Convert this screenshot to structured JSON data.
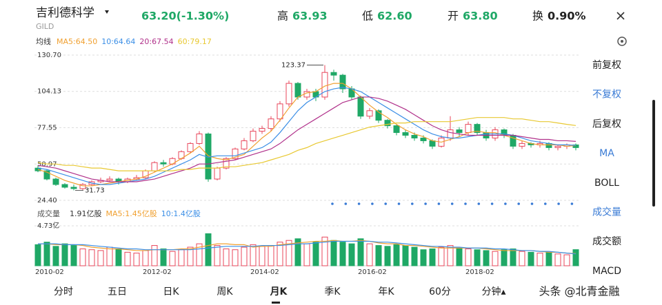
{
  "header": {
    "name": "吉利德科学",
    "ticker": "GILD",
    "price": "63.20(-1.30%)",
    "high_label": "高",
    "high": "63.93",
    "low_label": "低",
    "low": "62.60",
    "open_label": "开",
    "open": "63.80",
    "turnover_label": "换",
    "turnover": "0.90%"
  },
  "ma_title": "均线",
  "chart_data": {
    "type": "candlestick",
    "categories": [
      "2010-02",
      null,
      null,
      null,
      null,
      null,
      null,
      null,
      null,
      null,
      null,
      null,
      "2012-02",
      null,
      null,
      null,
      null,
      null,
      null,
      null,
      null,
      null,
      null,
      null,
      "2014-02",
      null,
      null,
      null,
      null,
      null,
      null,
      null,
      null,
      null,
      null,
      null,
      "2016-02",
      null,
      null,
      null,
      null,
      null,
      null,
      null,
      null,
      null,
      null,
      null,
      "2018-02",
      null,
      null,
      null,
      null,
      null,
      null,
      null,
      null,
      null,
      null,
      null,
      null
    ],
    "open": [
      48,
      46,
      40,
      36,
      34,
      33,
      36,
      38,
      39,
      40,
      38,
      40,
      41,
      46,
      52,
      51,
      55,
      60,
      66,
      73,
      40,
      48,
      55,
      62,
      68,
      75,
      77,
      84,
      95,
      110,
      100,
      104,
      100,
      118,
      116,
      106,
      100,
      86,
      90,
      83,
      79,
      74,
      72,
      70,
      68,
      64,
      70,
      76,
      74,
      80,
      74,
      70,
      76,
      72,
      64,
      66,
      65,
      66,
      63,
      64,
      65
    ],
    "high": [
      50,
      47,
      41,
      37,
      36,
      37,
      39,
      41,
      42,
      41,
      41,
      43,
      47,
      53,
      54,
      56,
      61,
      67,
      75,
      74,
      49,
      56,
      63,
      70,
      77,
      79,
      86,
      97,
      112,
      111,
      106,
      106,
      123.37,
      120,
      117,
      108,
      101,
      92,
      91,
      84,
      80,
      76,
      74,
      72,
      69,
      72,
      86,
      78,
      82,
      81,
      76,
      78,
      77,
      73,
      68,
      67,
      68,
      67,
      65,
      66,
      66
    ],
    "low": [
      45,
      39,
      35,
      33,
      31.73,
      32,
      35,
      37,
      38,
      36,
      37,
      39,
      40,
      45,
      49,
      50,
      54,
      59,
      65,
      38,
      39,
      47,
      54,
      61,
      67,
      73,
      75,
      82,
      93,
      98,
      98,
      97,
      98,
      112,
      103,
      98,
      84,
      84,
      81,
      77,
      72,
      70,
      68,
      66,
      62,
      63,
      68,
      71,
      72,
      72,
      68,
      68,
      70,
      62,
      62,
      63,
      63,
      61,
      61,
      62,
      61
    ],
    "close": [
      46,
      40,
      36,
      34,
      33,
      36,
      38,
      39,
      40,
      38,
      40,
      41,
      46,
      52,
      51,
      55,
      60,
      66,
      73,
      40,
      48,
      55,
      62,
      68,
      75,
      77,
      84,
      95,
      110,
      100,
      104,
      100,
      118,
      116,
      106,
      100,
      86,
      90,
      83,
      79,
      74,
      72,
      70,
      68,
      64,
      70,
      76,
      74,
      80,
      74,
      70,
      76,
      72,
      64,
      66,
      65,
      66,
      63,
      64,
      65,
      63
    ],
    "up_color": "#e8455a",
    "down_color": "#1fa866",
    "ylim": [
      24.4,
      130.7
    ],
    "yticks": [
      {
        "value": 130.7,
        "label": "130.70"
      },
      104.13,
      77.55,
      50.97,
      {
        "value": 24.4,
        "label": "24.40"
      }
    ],
    "grid": true,
    "ma_lines": [
      {
        "name": "MA5:64.50",
        "color": "#f0a030",
        "values": [
          47,
          45,
          42,
          39,
          37,
          35,
          35,
          36,
          37,
          38,
          39,
          40,
          42,
          45,
          48,
          51,
          55,
          59,
          64,
          57,
          55,
          54,
          56,
          58,
          64,
          70,
          75,
          83,
          92,
          100,
          103,
          104,
          108,
          110,
          110,
          106,
          100,
          94,
          89,
          85,
          80,
          76,
          73,
          71,
          68,
          67,
          69,
          71,
          74,
          75,
          74,
          74,
          72,
          70,
          68,
          66,
          65,
          65,
          65,
          64,
          64.5
        ]
      },
      {
        "name": "10:64.64",
        "color": "#3a8ee6",
        "values": [
          48,
          47,
          45,
          43,
          41,
          39,
          37,
          36,
          36,
          37,
          38,
          39,
          40,
          42,
          45,
          48,
          51,
          54,
          58,
          56,
          57,
          57,
          57,
          59,
          61,
          63,
          67,
          74,
          82,
          90,
          96,
          100,
          104,
          106,
          107,
          106,
          104,
          100,
          96,
          92,
          88,
          84,
          80,
          76,
          73,
          71,
          70,
          70,
          71,
          72,
          73,
          73,
          73,
          72,
          70,
          68,
          67,
          66,
          65,
          65,
          64.64
        ]
      },
      {
        "name": "20:67.54",
        "color": "#b0308a",
        "values": [
          50,
          49,
          48,
          46,
          44,
          42,
          40,
          39,
          38,
          38,
          38,
          38,
          39,
          40,
          42,
          44,
          46,
          48,
          51,
          51,
          52,
          53,
          54,
          56,
          58,
          60,
          62,
          66,
          71,
          76,
          80,
          84,
          88,
          92,
          96,
          98,
          100,
          100,
          99,
          97,
          94,
          91,
          87,
          83,
          79,
          76,
          74,
          73,
          72,
          72,
          72,
          72,
          72,
          72,
          71,
          70,
          69,
          69,
          68,
          68,
          67.54
        ]
      },
      {
        "name": "60:79.17",
        "color": "#e8c830",
        "values": [
          52,
          51,
          51,
          50,
          50,
          49,
          48,
          48,
          47,
          46,
          46,
          46,
          46,
          46,
          46,
          46,
          47,
          47,
          48,
          48,
          48,
          49,
          49,
          50,
          51,
          52,
          54,
          56,
          58,
          61,
          63,
          66,
          68,
          70,
          72,
          74,
          76,
          78,
          79,
          80,
          81,
          81,
          82,
          82,
          82,
          82,
          82,
          83,
          84,
          85,
          85,
          85,
          85,
          84,
          84,
          83,
          82,
          82,
          81,
          80,
          79.17
        ]
      }
    ],
    "volume": {
      "title": "成交量",
      "current": "1.91亿股",
      "ylim": [
        0,
        4.73
      ],
      "yticks": [
        {
          "value": 4.73,
          "label": "4.73亿"
        }
      ],
      "values": [
        2.5,
        2.8,
        2.3,
        2.6,
        2.4,
        2.0,
        1.9,
        1.8,
        2.2,
        2.0,
        1.6,
        1.5,
        1.8,
        2.4,
        2.0,
        1.7,
        1.9,
        2.2,
        2.6,
        3.8,
        2.4,
        2.0,
        1.9,
        2.2,
        2.5,
        2.3,
        2.4,
        2.8,
        3.0,
        3.2,
        2.6,
        2.8,
        3.4,
        3.0,
        2.8,
        2.6,
        3.2,
        2.6,
        2.4,
        2.3,
        2.5,
        2.4,
        2.2,
        1.9,
        2.0,
        2.2,
        2.4,
        2.1,
        2.0,
        1.9,
        1.8,
        1.7,
        1.9,
        2.0,
        1.7,
        1.6,
        1.5,
        1.6,
        1.4,
        1.3,
        1.91
      ],
      "lines": [
        {
          "name": "MA5:1.45亿股",
          "color": "#f0a030",
          "values": [
            2.6,
            2.6,
            2.5,
            2.5,
            2.5,
            2.4,
            2.2,
            2.1,
            2.0,
            2.0,
            1.9,
            1.8,
            1.8,
            1.9,
            1.9,
            1.9,
            2.0,
            2.0,
            2.2,
            2.4,
            2.6,
            2.6,
            2.5,
            2.5,
            2.2,
            2.3,
            2.3,
            2.5,
            2.6,
            2.7,
            2.8,
            2.9,
            2.9,
            3.0,
            2.9,
            2.9,
            3.0,
            2.9,
            2.7,
            2.6,
            2.6,
            2.4,
            2.4,
            2.3,
            2.2,
            2.1,
            2.1,
            2.1,
            2.1,
            2.1,
            2.0,
            1.9,
            1.8,
            1.8,
            1.8,
            1.8,
            1.7,
            1.6,
            1.6,
            1.5,
            1.45
          ]
        },
        {
          "name": "10:1.4亿股",
          "color": "#3a8ee6",
          "values": [
            2.6,
            2.6,
            2.6,
            2.5,
            2.5,
            2.5,
            2.4,
            2.3,
            2.2,
            2.1,
            2.0,
            2.0,
            1.9,
            1.9,
            1.9,
            1.9,
            1.9,
            1.9,
            2.0,
            2.1,
            2.2,
            2.3,
            2.3,
            2.3,
            2.3,
            2.4,
            2.4,
            2.4,
            2.5,
            2.6,
            2.6,
            2.7,
            2.8,
            2.9,
            2.9,
            2.9,
            2.9,
            2.9,
            2.8,
            2.8,
            2.7,
            2.6,
            2.5,
            2.4,
            2.3,
            2.3,
            2.2,
            2.2,
            2.1,
            2.1,
            2.1,
            2.0,
            2.0,
            1.9,
            1.8,
            1.8,
            1.7,
            1.7,
            1.6,
            1.5,
            1.4
          ]
        }
      ]
    }
  },
  "side_menu": [
    {
      "label": "前复权",
      "active": false
    },
    {
      "label": "不复权",
      "active": true
    },
    {
      "label": "后复权",
      "active": false
    },
    {
      "label": "MA",
      "active": true
    },
    {
      "label": "BOLL",
      "active": false
    },
    {
      "label": "成交量",
      "active": true
    },
    {
      "label": "成交额",
      "active": false
    },
    {
      "label": "MACD",
      "active": false
    }
  ],
  "tabs": [
    {
      "label": "分时",
      "active": false
    },
    {
      "label": "五日",
      "active": false
    },
    {
      "label": "日K",
      "active": false
    },
    {
      "label": "周K",
      "active": false
    },
    {
      "label": "月K",
      "active": true
    },
    {
      "label": "季K",
      "active": false
    },
    {
      "label": "年K",
      "active": false
    },
    {
      "label": "60分",
      "active": false
    },
    {
      "label": "分钟▴",
      "active": false
    }
  ],
  "watermark": "头条 @北青金融"
}
